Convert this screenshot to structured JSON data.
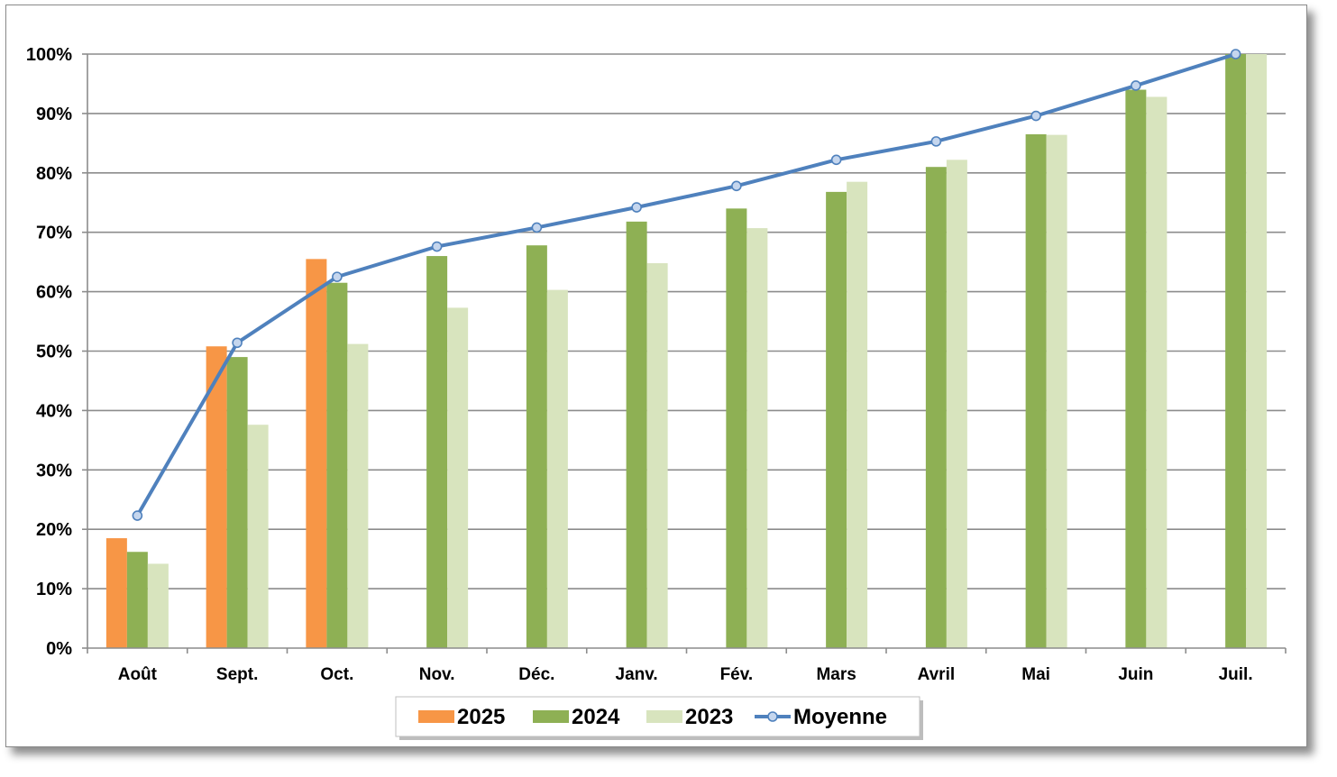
{
  "colors": {
    "s2025": "#F79646",
    "s2024": "#8EB054",
    "s2023": "#D8E4BE",
    "moyenne": "#4F81BD",
    "moyenne_marker_fill": "#C5D6EE",
    "grid": "#8C8C8C"
  },
  "chart_data": {
    "type": "bar",
    "categories": [
      "Août",
      "Sept.",
      "Oct.",
      "Nov.",
      "Déc.",
      "Janv.",
      "Fév.",
      "Mars",
      "Avril",
      "Mai",
      "Juin",
      "Juil."
    ],
    "series": [
      {
        "name": "2025",
        "type": "bar",
        "values": [
          18.5,
          50.8,
          65.5,
          null,
          null,
          null,
          null,
          null,
          null,
          null,
          null,
          null
        ]
      },
      {
        "name": "2024",
        "type": "bar",
        "values": [
          16.2,
          49.0,
          61.5,
          66.0,
          67.8,
          71.8,
          74.0,
          76.8,
          81.0,
          86.5,
          94.0,
          100.0
        ]
      },
      {
        "name": "2023",
        "type": "bar",
        "values": [
          14.2,
          37.6,
          51.2,
          57.3,
          60.3,
          64.8,
          70.7,
          78.5,
          82.2,
          86.4,
          92.8,
          100.0
        ]
      },
      {
        "name": "Moyenne",
        "type": "line",
        "values": [
          22.3,
          51.4,
          62.5,
          67.6,
          70.8,
          74.2,
          77.8,
          82.2,
          85.3,
          89.6,
          94.7,
          100.0
        ]
      }
    ],
    "yticks": [
      "0%",
      "10%",
      "20%",
      "30%",
      "40%",
      "50%",
      "60%",
      "70%",
      "80%",
      "90%",
      "100%"
    ],
    "ylim": [
      0,
      100
    ],
    "grid": true,
    "legend_position": "bottom"
  }
}
